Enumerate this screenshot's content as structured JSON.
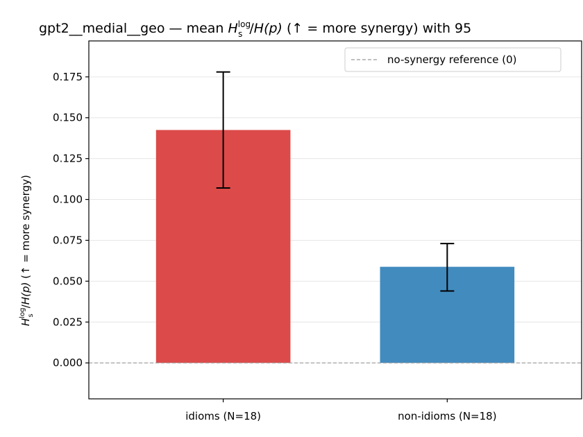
{
  "chart_data": {
    "type": "bar",
    "title_parts": {
      "prefix": "gpt2__medial__geo — mean ",
      "h": "H",
      "sub": "s",
      "sup": "log",
      "slash": "/",
      "hp": "H",
      "hp_arg": "(p)",
      "suffix": "  (↑ = more synergy) with 95"
    },
    "ylabel_parts": {
      "h": "H",
      "sub": "s",
      "sup": "log",
      "slash": "/",
      "hp": "H",
      "hp_arg": "(p)",
      "suffix": "  (↑ = more synergy)"
    },
    "categories": [
      "idioms (N=18)",
      "non-idioms (N=18)"
    ],
    "values": [
      0.1425,
      0.0588
    ],
    "ci_low": [
      0.107,
      0.044
    ],
    "ci_high": [
      0.178,
      0.073
    ],
    "bar_colors": [
      "#dc4a4a",
      "#428bbf"
    ],
    "ylim": [
      -0.022,
      0.197
    ],
    "yticks": [
      0.0,
      0.025,
      0.05,
      0.075,
      0.1,
      0.125,
      0.15,
      0.175
    ],
    "ytick_labels": [
      "0.000",
      "0.025",
      "0.050",
      "0.075",
      "0.100",
      "0.125",
      "0.150",
      "0.175"
    ],
    "reference_line": {
      "value": 0,
      "label": "no-synergy reference (0)",
      "color": "#999999"
    },
    "grid": "y",
    "legend_position": "top-right"
  }
}
